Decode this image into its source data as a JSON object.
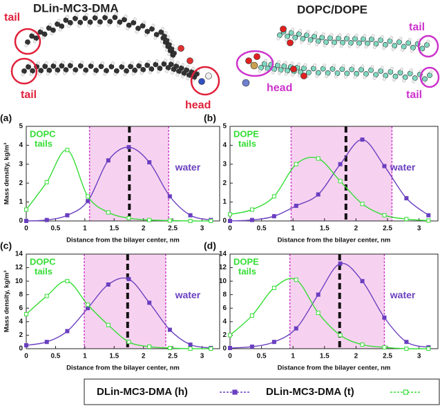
{
  "molecules": [
    {
      "name": "DLin-MC3-DMA",
      "labels": [
        "tail",
        "tail",
        "head"
      ]
    },
    {
      "name": "DOPC/DOPE",
      "labels": [
        "tail",
        "head",
        "tail"
      ]
    }
  ],
  "chart_data": [
    {
      "type": "line",
      "label": "(a)",
      "annotations": [
        "DOPC",
        "tails",
        "water"
      ],
      "xlabel": "Distance from the bilayer center, nm",
      "ylabel": "Mass density, kg/m³",
      "x": [
        0,
        0.35,
        0.7,
        1.05,
        1.4,
        1.75,
        2.1,
        2.45,
        2.8,
        3.15
      ],
      "series": [
        {
          "name": "DLin-MC3-DMA (h)",
          "color": "#6a3fc0",
          "values": [
            0,
            0.05,
            0.3,
            1.05,
            3.2,
            3.9,
            3.1,
            1.3,
            0.3,
            0.05
          ]
        },
        {
          "name": "DLin-MC3-DMA (t)",
          "color": "#33dd33",
          "values": [
            0.6,
            2.05,
            3.75,
            1.3,
            0.45,
            0.15,
            0.05,
            0.02,
            0,
            0
          ]
        }
      ],
      "band": [
        1.08,
        2.43
      ],
      "center_line": 1.76,
      "xlim": [
        0,
        3.3
      ],
      "xticks": [
        0,
        0.5,
        1,
        1.5,
        2,
        2.5,
        3
      ],
      "ylim": [
        0,
        5
      ],
      "yticks": [
        0,
        1,
        2,
        3,
        4,
        5
      ]
    },
    {
      "type": "line",
      "label": "(b)",
      "annotations": [
        "DOPE",
        "tails",
        "water"
      ],
      "xlabel": "Distance from the bilayer center, nm",
      "x": [
        0,
        0.35,
        0.7,
        1.05,
        1.4,
        1.75,
        2.1,
        2.45,
        2.8,
        3.15
      ],
      "series": [
        {
          "name": "DLin-MC3-DMA (h)",
          "color": "#6a3fc0",
          "values": [
            0,
            0.05,
            0.25,
            0.8,
            1.4,
            3.0,
            4.3,
            2.9,
            1.2,
            0.3
          ]
        },
        {
          "name": "DLin-MC3-DMA (t)",
          "color": "#33dd33",
          "values": [
            0.35,
            0.6,
            1.3,
            3.0,
            3.3,
            2.1,
            0.9,
            0.3,
            0.1,
            0.02
          ]
        }
      ],
      "band": [
        0.97,
        2.57
      ],
      "center_line": 1.84,
      "xlim": [
        0,
        3.3
      ],
      "xticks": [
        0,
        0.5,
        1,
        1.5,
        2,
        2.5,
        3
      ],
      "ylim": [
        0,
        5
      ],
      "yticks": [
        0,
        1,
        2,
        3,
        4,
        5
      ]
    },
    {
      "type": "line",
      "label": "(c)",
      "annotations": [
        "DOPC",
        "tails",
        "water"
      ],
      "xlabel": "Distance from the bilayer center, nm",
      "ylabel": "Mass density, kg/m³",
      "x": [
        0,
        0.35,
        0.7,
        1.05,
        1.4,
        1.75,
        2.1,
        2.45,
        2.8,
        3.15
      ],
      "series": [
        {
          "name": "DLin-MC3-DMA (h)",
          "color": "#6a3fc0",
          "values": [
            0.5,
            1.0,
            2.6,
            6.0,
            9.5,
            10.3,
            6.8,
            2.8,
            0.6,
            0.1
          ]
        },
        {
          "name": "DLin-MC3-DMA (t)",
          "color": "#33dd33",
          "values": [
            5.1,
            7.8,
            10.0,
            6.5,
            3.5,
            1.0,
            0.3,
            0.1,
            0,
            0
          ]
        }
      ],
      "band": [
        0.99,
        2.38
      ],
      "center_line": 1.73,
      "xlim": [
        0,
        3.3
      ],
      "xticks": [
        0,
        0.5,
        1,
        1.5,
        2,
        2.5,
        3
      ],
      "ylim": [
        0,
        14
      ],
      "yticks": [
        0,
        2,
        4,
        6,
        8,
        10,
        12,
        14
      ]
    },
    {
      "type": "line",
      "label": "(d)",
      "annotations": [
        "DOPE",
        "tails",
        "water"
      ],
      "xlabel": "Distance from the bilayer center, nm",
      "x": [
        0,
        0.35,
        0.7,
        1.05,
        1.4,
        1.75,
        2.1,
        2.45,
        2.8,
        3.15
      ],
      "series": [
        {
          "name": "DLin-MC3-DMA (h)",
          "color": "#6a3fc0",
          "values": [
            0.1,
            0.3,
            1.0,
            3.0,
            8.0,
            12.6,
            10.0,
            4.6,
            1.0,
            0.2
          ]
        },
        {
          "name": "DLin-MC3-DMA (t)",
          "color": "#33dd33",
          "values": [
            2.0,
            4.9,
            9.0,
            10.2,
            5.3,
            2.0,
            0.6,
            0.2,
            0,
            0
          ]
        }
      ],
      "band": [
        0.95,
        2.45
      ],
      "center_line": 1.74,
      "xlim": [
        0,
        3.3
      ],
      "xticks": [
        0,
        0.5,
        1,
        1.5,
        2,
        2.5,
        3
      ],
      "ylim": [
        0,
        14
      ],
      "yticks": [
        0,
        2,
        4,
        6,
        8,
        10,
        12,
        14
      ]
    }
  ]
}
